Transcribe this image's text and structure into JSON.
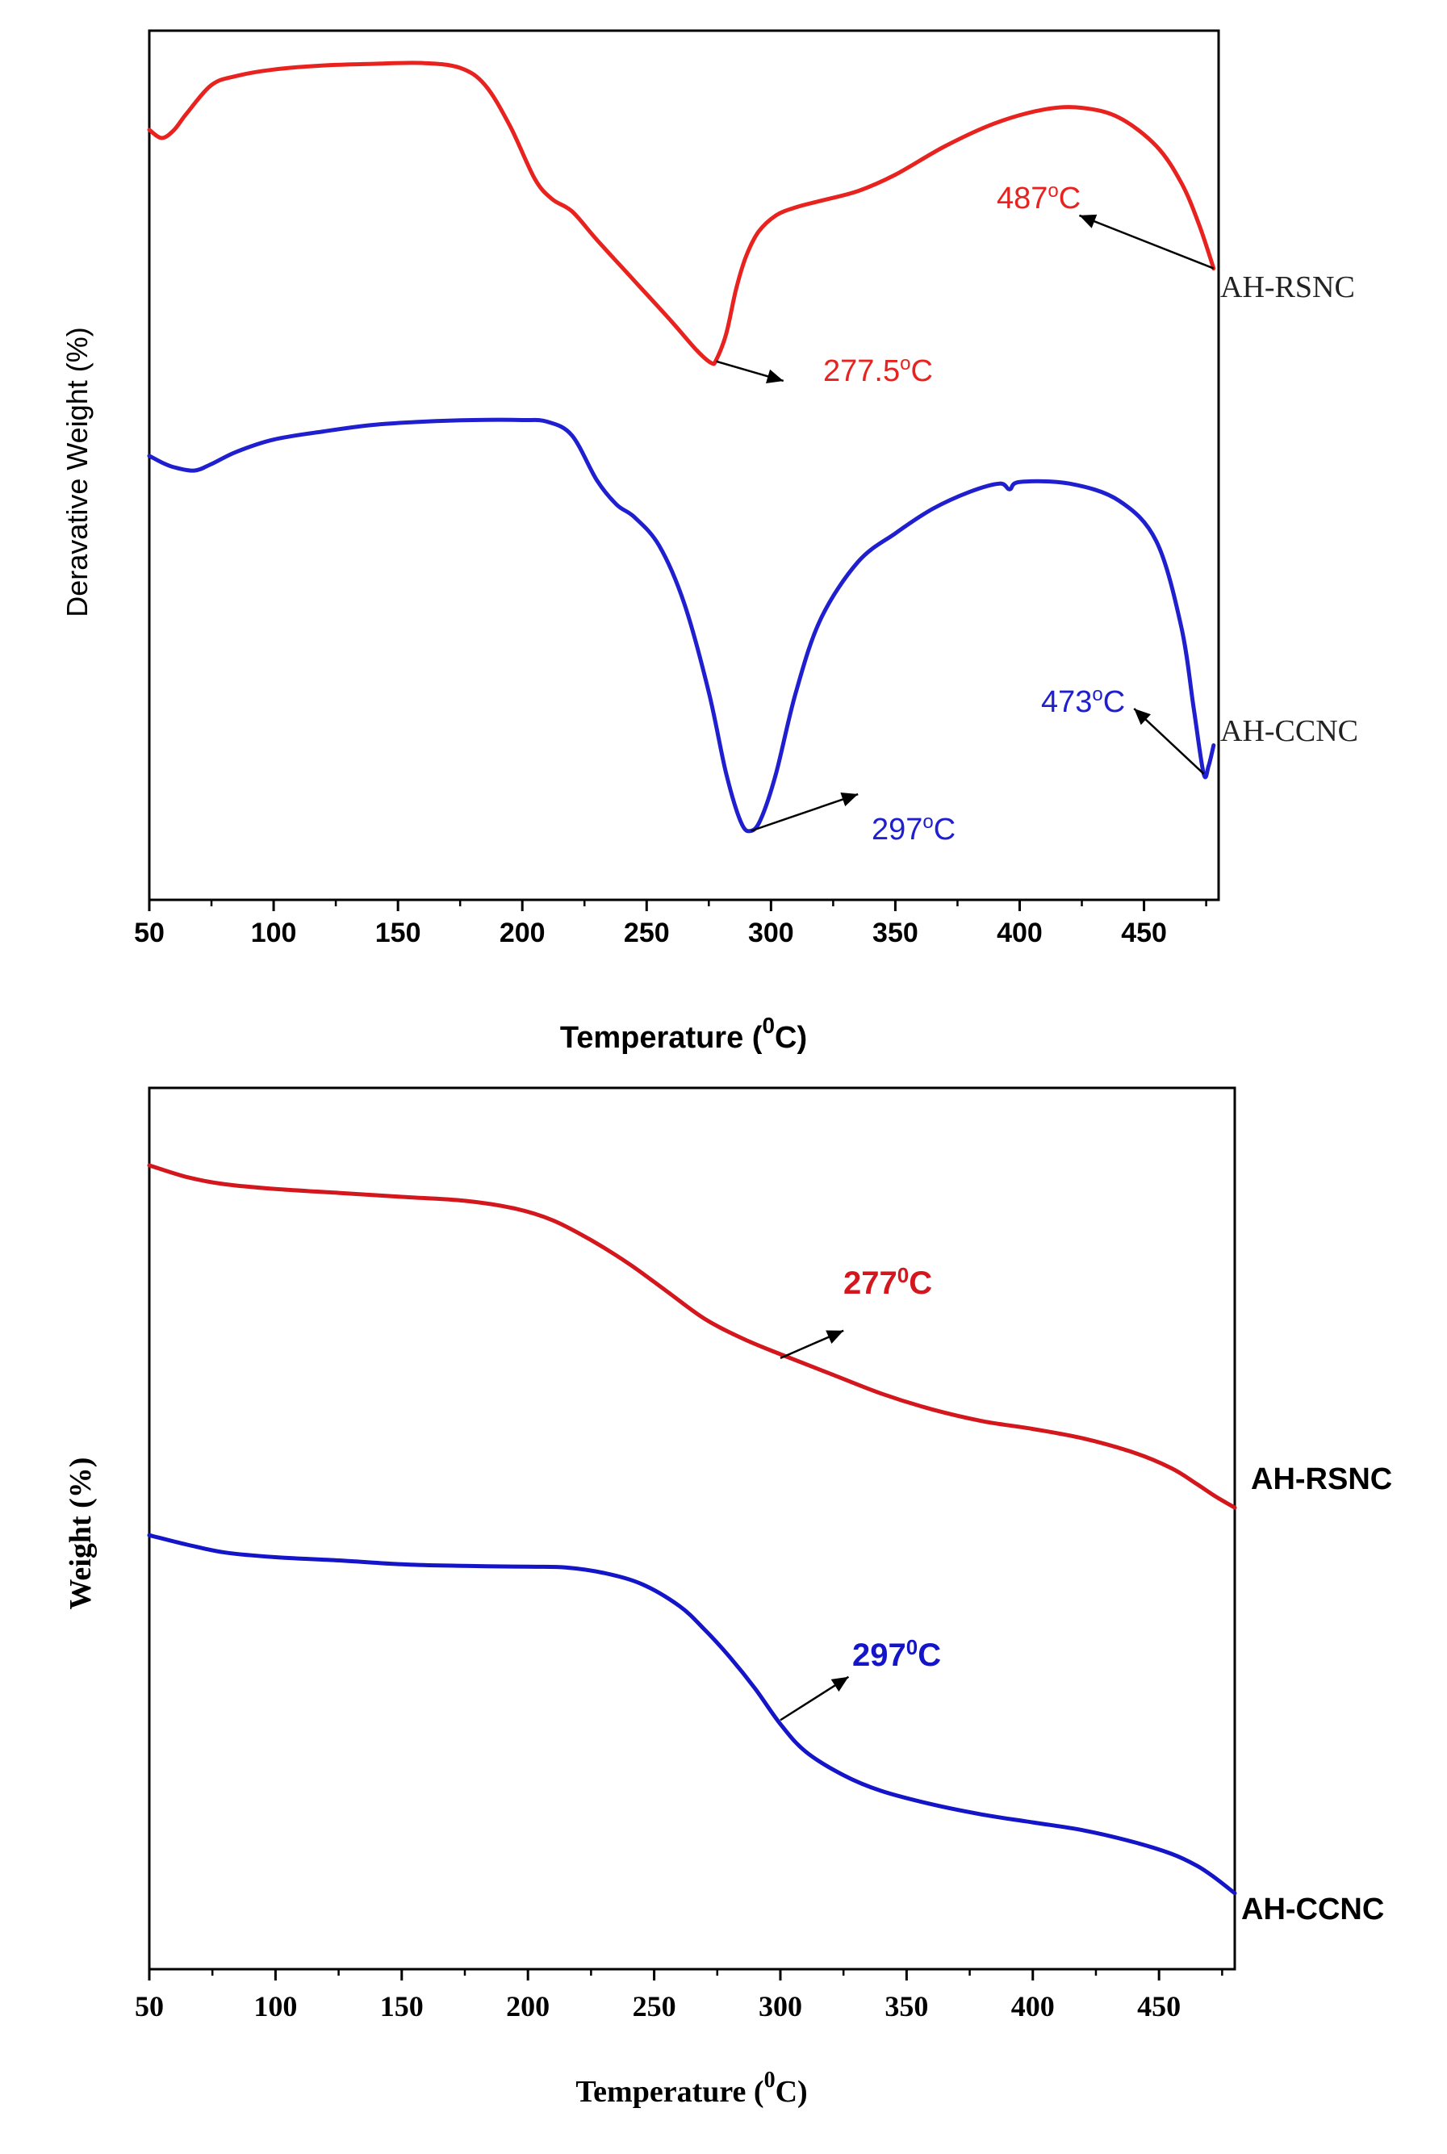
{
  "chart_data": [
    {
      "type": "line",
      "panel": "top",
      "title": "",
      "xlabel": "Temperature (",
      "xlabel_sup": "0",
      "xlabel_tail": "C)",
      "ylabel": "Deravative Weight (%)",
      "xlim": [
        50,
        480
      ],
      "ylim": [
        0,
        100
      ],
      "xticks": [
        50,
        100,
        150,
        200,
        250,
        300,
        350,
        400,
        450
      ],
      "tick_labels": [
        "50",
        "100",
        "150",
        "200",
        "250",
        "300",
        "350",
        "400",
        "450"
      ],
      "grid": false,
      "colors": {
        "AH-RSNC": "#e8231f",
        "AH-CCNC": "#1f1fcf"
      },
      "series": [
        {
          "name": "AH-RSNC",
          "label": "AH-RSNC",
          "x": [
            50,
            55,
            60,
            65,
            75,
            85,
            100,
            120,
            140,
            160,
            175,
            185,
            195,
            205,
            212,
            220,
            230,
            245,
            260,
            270,
            276,
            278,
            282,
            286,
            290,
            295,
            302,
            310,
            320,
            335,
            350,
            370,
            390,
            410,
            425,
            440,
            455,
            465,
            472,
            478
          ],
          "y": [
            91.0,
            90.0,
            91.0,
            93.0,
            96.5,
            97.6,
            98.4,
            98.9,
            99.1,
            99.2,
            98.6,
            96.5,
            91.5,
            85.0,
            82.5,
            81.0,
            77.5,
            72.5,
            67.5,
            64.0,
            62.4,
            62.8,
            66.0,
            71.5,
            75.5,
            78.5,
            80.5,
            81.5,
            82.3,
            83.5,
            85.5,
            89.0,
            91.8,
            93.5,
            93.7,
            92.5,
            89.0,
            84.5,
            79.5,
            74.0
          ]
        },
        {
          "name": "AH-CCNC",
          "label": "AH-CCNC",
          "x": [
            50,
            55,
            60,
            68,
            75,
            85,
            100,
            120,
            140,
            160,
            180,
            200,
            210,
            220,
            230,
            238,
            245,
            255,
            265,
            275,
            282,
            288,
            292,
            296,
            302,
            310,
            320,
            335,
            350,
            365,
            380,
            392,
            396,
            400,
            420,
            440,
            455,
            465,
            470,
            474,
            476,
            478
          ],
          "y": [
            51.0,
            50.2,
            49.6,
            49.2,
            50.0,
            51.5,
            53.0,
            54.0,
            54.8,
            55.2,
            55.4,
            55.4,
            55.2,
            53.5,
            48.0,
            45.0,
            43.5,
            40.0,
            33.0,
            22.0,
            12.0,
            6.0,
            5.0,
            6.5,
            12.0,
            22.0,
            31.0,
            38.0,
            41.5,
            44.5,
            46.6,
            47.6,
            46.9,
            47.8,
            47.6,
            45.5,
            40.5,
            30.0,
            20.0,
            12.0,
            13.0,
            15.5
          ]
        }
      ],
      "annotations": [
        {
          "text": "277.5",
          "unit": "C",
          "series": "AH-RSNC",
          "at": [
            278,
            62.6
          ],
          "to": [
            305,
            60.2
          ]
        },
        {
          "text": "487",
          "unit": "C",
          "series": "AH-RSNC",
          "at": [
            478,
            74.0
          ],
          "to": [
            424,
            80.5
          ]
        },
        {
          "text": "297",
          "unit": "C",
          "series": "AH-CCNC",
          "at": [
            292,
            5.0
          ],
          "to": [
            335,
            9.5
          ]
        },
        {
          "text": "473",
          "unit": "C",
          "series": "AH-CCNC",
          "at": [
            474,
            12.0
          ],
          "to": [
            446,
            20.0
          ]
        }
      ]
    },
    {
      "type": "line",
      "panel": "bottom",
      "title": "",
      "xlabel": "Temperature (",
      "xlabel_sup": "0",
      "xlabel_tail": "C)",
      "ylabel": "Weight (%)",
      "xlim": [
        50,
        480
      ],
      "ylim": [
        0,
        100
      ],
      "xticks": [
        50,
        100,
        150,
        200,
        250,
        300,
        350,
        400,
        450
      ],
      "tick_labels": [
        "50",
        "100",
        "150",
        "200",
        "250",
        "300",
        "350",
        "400",
        "450"
      ],
      "grid": false,
      "colors": {
        "AH-RSNC": "#d4161d",
        "AH-CCNC": "#1414c8"
      },
      "series": [
        {
          "name": "AH-RSNC",
          "label": "AH-RSNC",
          "x": [
            50,
            65,
            80,
            100,
            125,
            150,
            175,
            195,
            210,
            225,
            240,
            255,
            270,
            285,
            300,
            320,
            340,
            360,
            380,
            400,
            420,
            440,
            455,
            465,
            472,
            480
          ],
          "y": [
            96.0,
            94.5,
            93.6,
            93.0,
            92.5,
            92.0,
            91.5,
            90.5,
            89.0,
            86.5,
            83.5,
            80.0,
            76.5,
            74.0,
            72.0,
            69.5,
            67.0,
            65.0,
            63.5,
            62.5,
            61.3,
            59.5,
            57.5,
            55.5,
            54.0,
            52.5
          ]
        },
        {
          "name": "AH-CCNC",
          "label": "AH-CCNC",
          "x": [
            50,
            65,
            80,
            100,
            125,
            150,
            175,
            200,
            215,
            230,
            245,
            260,
            270,
            280,
            290,
            300,
            310,
            325,
            340,
            360,
            380,
            400,
            420,
            440,
            455,
            465,
            472,
            480
          ],
          "y": [
            49.0,
            47.8,
            46.8,
            46.2,
            45.8,
            45.3,
            45.1,
            45.0,
            44.9,
            44.2,
            42.8,
            40.0,
            37.0,
            33.5,
            29.5,
            25.0,
            21.5,
            18.5,
            16.5,
            14.8,
            13.5,
            12.5,
            11.5,
            10.0,
            8.5,
            7.0,
            5.5,
            3.5
          ]
        }
      ],
      "annotations": [
        {
          "text": "277",
          "unit": "C",
          "series": "AH-RSNC",
          "at": [
            300,
            71.5
          ],
          "to": [
            325,
            75.0
          ]
        },
        {
          "text": "297",
          "unit": "C",
          "series": "AH-CCNC",
          "at": [
            300,
            25.5
          ],
          "to": [
            327,
            31.0
          ]
        }
      ]
    }
  ]
}
